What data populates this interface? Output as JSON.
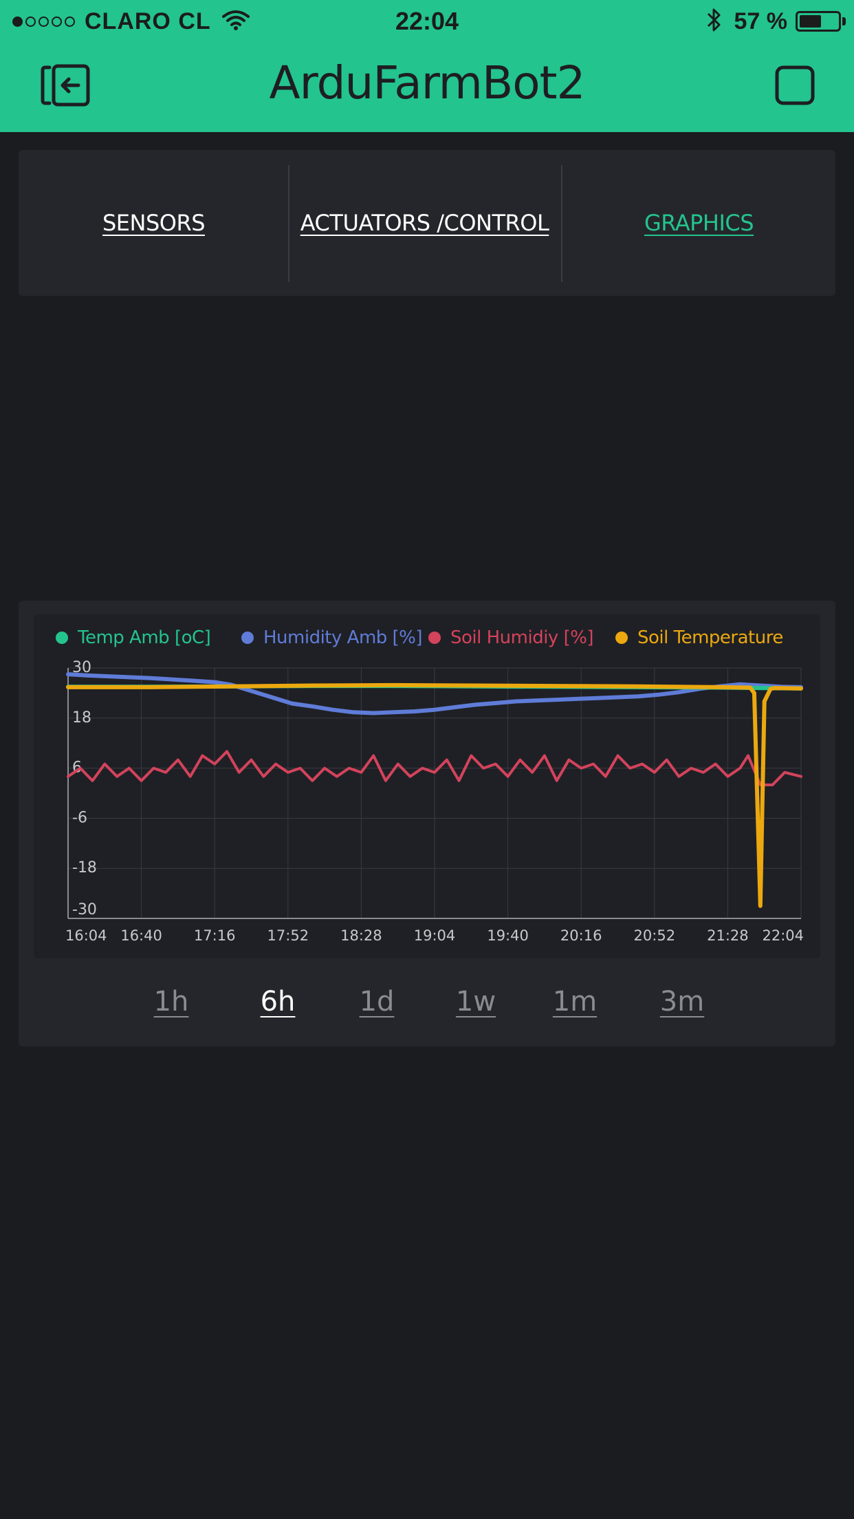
{
  "status_bar": {
    "carrier": "CLARO CL",
    "time": "22:04",
    "battery_text": "57 %",
    "battery_level": 0.57,
    "signal_filled": 1,
    "signal_total": 5
  },
  "header": {
    "title": "ArduFarmBot2",
    "back_icon": "exit-device-icon",
    "stop_icon": "stop-square-icon"
  },
  "tabs": [
    {
      "label": "SENSORS",
      "active": false
    },
    {
      "label": "ACTUATORS /CONTROL",
      "active": false
    },
    {
      "label": "GRAPHICS",
      "active": true
    }
  ],
  "periods": [
    {
      "label": "1h",
      "active": false
    },
    {
      "label": "6h",
      "active": true
    },
    {
      "label": "1d",
      "active": false
    },
    {
      "label": "1w",
      "active": false
    },
    {
      "label": "1m",
      "active": false
    },
    {
      "label": "3m",
      "active": false
    }
  ],
  "colors": {
    "accent": "#23c48e",
    "temp": "#23c48e",
    "humidity": "#5f7cd8",
    "soil_humidity": "#d3435c",
    "soil_temp": "#eba80f"
  },
  "chart_data": {
    "type": "line",
    "title": "",
    "xlabel": "",
    "ylabel": "",
    "ylim": [
      -30,
      30
    ],
    "y_ticks": [
      "30",
      "18",
      "6",
      "-6",
      "-18",
      "-30"
    ],
    "y_tick_values": [
      30,
      18,
      6,
      -6,
      -18,
      -30
    ],
    "x_tick_labels": [
      "16:04",
      "16:40",
      "17:16",
      "17:52",
      "18:28",
      "19:04",
      "19:40",
      "20:16",
      "20:52",
      "21:28",
      "22:04"
    ],
    "x_range_minutes": [
      0,
      360
    ],
    "x_tick_minutes": [
      0,
      36,
      72,
      108,
      144,
      180,
      216,
      252,
      288,
      324,
      360
    ],
    "series": [
      {
        "name": "Temp Amb [oC]",
        "color": "#23c48e",
        "x": [
          0,
          40,
          80,
          120,
          160,
          200,
          240,
          280,
          320,
          340,
          360
        ],
        "values": [
          25.5,
          25.5,
          25.6,
          25.7,
          25.7,
          25.6,
          25.5,
          25.4,
          25.3,
          25.2,
          25.1
        ]
      },
      {
        "name": "Humidity Amb [%]",
        "color": "#5f7cd8",
        "x": [
          0,
          10,
          20,
          40,
          60,
          72,
          80,
          90,
          100,
          110,
          120,
          130,
          140,
          150,
          160,
          170,
          180,
          190,
          200,
          210,
          220,
          230,
          240,
          250,
          260,
          270,
          280,
          290,
          300,
          310,
          320,
          330,
          340,
          350,
          360
        ],
        "values": [
          28.5,
          28.2,
          28.0,
          27.6,
          27.0,
          26.6,
          26.0,
          24.5,
          23.0,
          21.5,
          20.8,
          20.0,
          19.4,
          19.2,
          19.4,
          19.6,
          20.0,
          20.6,
          21.2,
          21.6,
          22.0,
          22.2,
          22.4,
          22.6,
          22.8,
          23.0,
          23.2,
          23.6,
          24.2,
          25.0,
          25.6,
          26.1,
          25.8,
          25.5,
          25.4
        ]
      },
      {
        "name": "Soil Humidiy [%]",
        "color": "#d3435c",
        "x": [
          0,
          6,
          12,
          18,
          24,
          30,
          36,
          42,
          48,
          54,
          60,
          66,
          72,
          78,
          84,
          90,
          96,
          102,
          108,
          114,
          120,
          126,
          132,
          138,
          144,
          150,
          156,
          162,
          168,
          174,
          180,
          186,
          192,
          198,
          204,
          210,
          216,
          222,
          228,
          234,
          240,
          246,
          252,
          258,
          264,
          270,
          276,
          282,
          288,
          294,
          300,
          306,
          312,
          318,
          324,
          330,
          334,
          340,
          346,
          352,
          360
        ],
        "values": [
          4,
          6,
          3,
          7,
          4,
          6,
          3,
          6,
          5,
          8,
          4,
          9,
          7,
          10,
          5,
          8,
          4,
          7,
          5,
          6,
          3,
          6,
          4,
          6,
          5,
          9,
          3,
          7,
          4,
          6,
          5,
          8,
          3,
          9,
          6,
          7,
          4,
          8,
          5,
          9,
          3,
          8,
          6,
          7,
          4,
          9,
          6,
          7,
          5,
          8,
          4,
          6,
          5,
          7,
          4,
          6,
          9,
          2,
          2,
          5,
          4
        ]
      },
      {
        "name": "Soil Temperature",
        "color": "#eba80f",
        "x": [
          0,
          40,
          80,
          120,
          160,
          200,
          240,
          280,
          320,
          335,
          337,
          340,
          342,
          345,
          347,
          360
        ],
        "values": [
          25.4,
          25.4,
          25.6,
          25.8,
          25.9,
          25.8,
          25.7,
          25.6,
          25.4,
          25.3,
          24.0,
          -27.0,
          22.0,
          25.0,
          25.2,
          25.1
        ]
      }
    ]
  }
}
